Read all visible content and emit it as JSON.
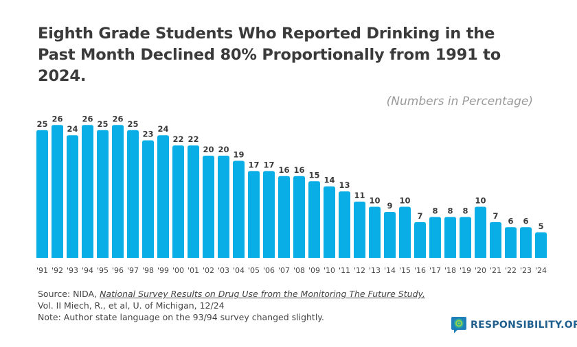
{
  "chart_data": {
    "type": "bar",
    "title": "Eighth Grade Students Who Reported Drinking in the Past Month Declined 80% Proportionally from 1991 to 2024.",
    "subtitle": "(Numbers in Percentage)",
    "categories": [
      "'91",
      "'92",
      "'93",
      "'94",
      "'95",
      "'96",
      "'97",
      "'98",
      "'99",
      "'00",
      "'01",
      "'02",
      "'03",
      "'04",
      "'05",
      "'06",
      "'07",
      "'08",
      "'09",
      "'10",
      "'11",
      "'12",
      "'13",
      "'14",
      "'15",
      "'16",
      "'17",
      "'18",
      "'19",
      "'20",
      "'21",
      "'22",
      "'23",
      "'24"
    ],
    "values": [
      25,
      26,
      24,
      26,
      25,
      26,
      25,
      23,
      24,
      22,
      22,
      20,
      20,
      19,
      17,
      17,
      16,
      16,
      15,
      14,
      13,
      11,
      10,
      9,
      10,
      7,
      8,
      8,
      8,
      10,
      7,
      6,
      6,
      5
    ],
    "ylim": [
      0,
      28
    ],
    "grid": false,
    "bar_color": "#0aaee6",
    "label_color": "#3a3a3a"
  },
  "source": {
    "prefix": "Source: NIDA, ",
    "title": "National Survey Results on Drug Use from the Monitoring The Future Study,",
    "line2": "Vol. II Miech, R., et al, U. of Michigan, 12/24",
    "note": "Note: Author state language on the 93/94 survey changed slightly."
  },
  "logo": {
    "text": "RESPONSIBILITY.ORG",
    "icon": "speech-bubble-target-icon"
  }
}
